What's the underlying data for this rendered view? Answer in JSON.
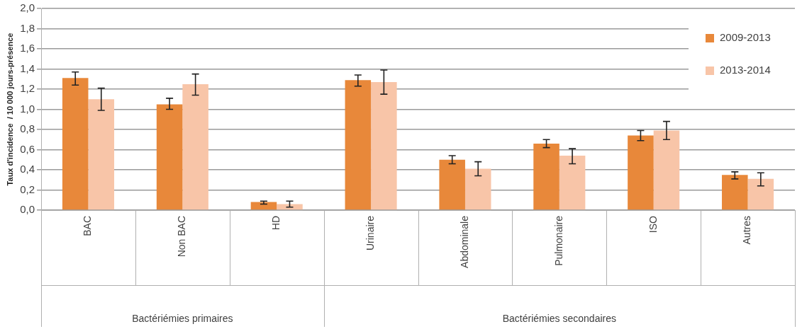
{
  "chart_data": {
    "type": "bar",
    "ylabel": "Taux d'incidence  / 10 000 jours-présence",
    "categories": [
      "BAC",
      "Non BAC",
      "HD",
      "Urinaire",
      "Abdominale",
      "Pulmonaire",
      "ISO",
      "Autres"
    ],
    "series": [
      {
        "name": "2009-2013",
        "color": "#e8883a",
        "values": [
          1.31,
          1.05,
          0.08,
          1.29,
          0.5,
          0.66,
          0.74,
          0.35
        ],
        "errors": [
          [
            1.24,
            1.37
          ],
          [
            1.0,
            1.11
          ],
          [
            0.06,
            0.09
          ],
          [
            1.23,
            1.34
          ],
          [
            0.46,
            0.54
          ],
          [
            0.62,
            0.7
          ],
          [
            0.69,
            0.79
          ],
          [
            0.31,
            0.38
          ]
        ]
      },
      {
        "name": "2013-2014",
        "color": "#f8c5a8",
        "values": [
          1.1,
          1.25,
          0.06,
          1.27,
          0.41,
          0.54,
          0.79,
          0.31
        ],
        "errors": [
          [
            0.99,
            1.21
          ],
          [
            1.14,
            1.35
          ],
          [
            0.03,
            0.09
          ],
          [
            1.15,
            1.39
          ],
          [
            0.34,
            0.48
          ],
          [
            0.46,
            0.61
          ],
          [
            0.7,
            0.88
          ],
          [
            0.24,
            0.37
          ]
        ]
      }
    ],
    "ylim": [
      0,
      2.0
    ],
    "yticks": [
      {
        "value": 0,
        "label": "0,0"
      },
      {
        "value": 0.2,
        "label": "0,2"
      },
      {
        "value": 0.4,
        "label": "0,4"
      },
      {
        "value": 0.6,
        "label": "0,6"
      },
      {
        "value": 0.8,
        "label": "0,8"
      },
      {
        "value": 1.0,
        "label": "1,0"
      },
      {
        "value": 1.2,
        "label": "1,2"
      },
      {
        "value": 1.4,
        "label": "1,4"
      },
      {
        "value": 1.6,
        "label": "1,6"
      },
      {
        "value": 1.8,
        "label": "1,8"
      },
      {
        "value": 2.0,
        "label": "2,0"
      }
    ],
    "grid": "y",
    "legend": "top right",
    "annotations": [
      "Bactériémies primaires",
      "Bactériémies secondaires"
    ]
  }
}
